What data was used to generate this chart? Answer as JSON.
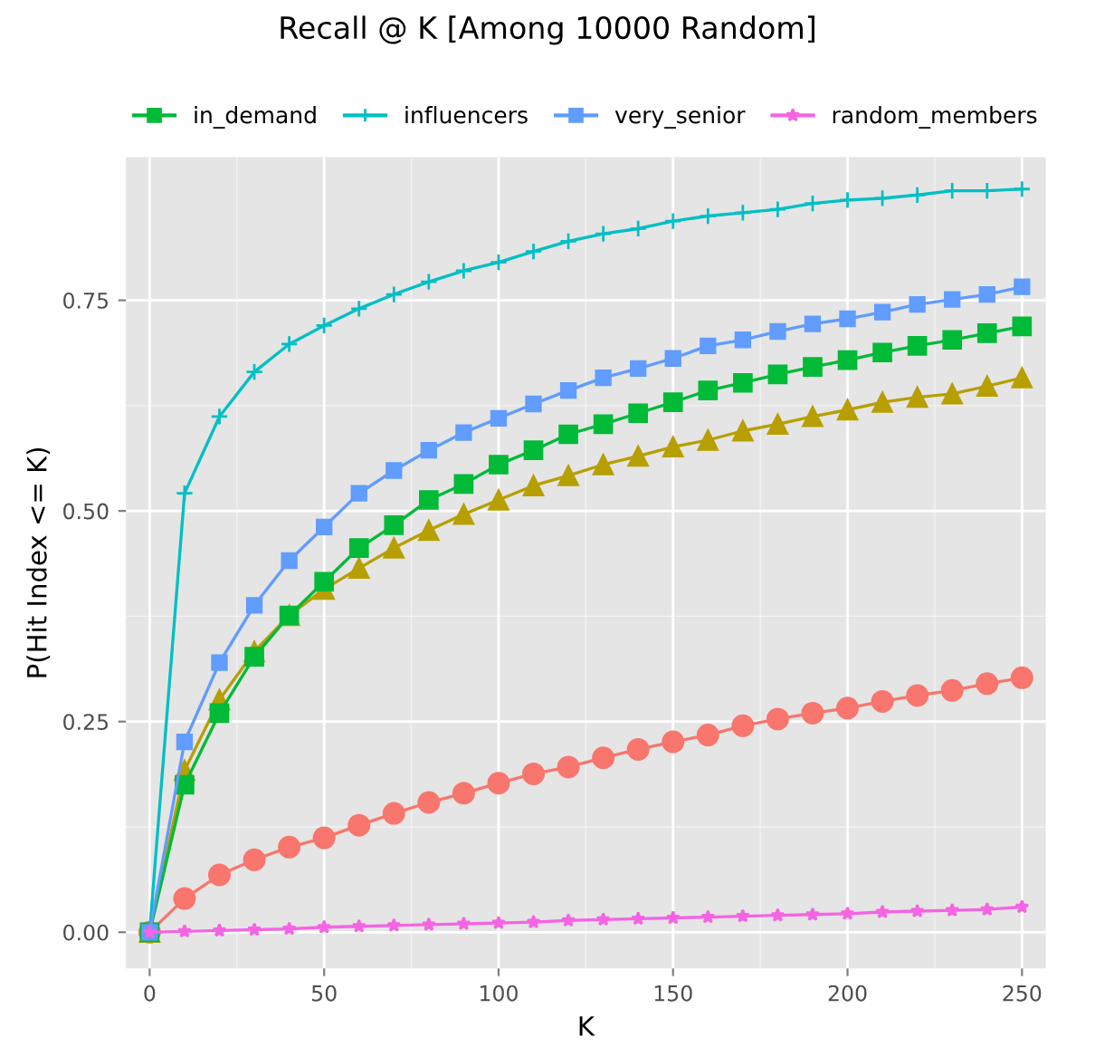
{
  "chart_data": {
    "type": "line",
    "title": "Recall @ K [Among 10000 Random]",
    "xlabel": "K",
    "ylabel": "P(Hit Index <= K)",
    "x": [
      0,
      10,
      20,
      30,
      40,
      50,
      60,
      70,
      80,
      90,
      100,
      110,
      120,
      130,
      140,
      150,
      160,
      170,
      180,
      190,
      200,
      210,
      220,
      230,
      240,
      250
    ],
    "series": [
      {
        "color": "#f8766d",
        "marker": "circle",
        "values": [
          0,
          0.04,
          0.068,
          0.086,
          0.101,
          0.112,
          0.127,
          0.141,
          0.154,
          0.165,
          0.177,
          0.188,
          0.196,
          0.207,
          0.217,
          0.226,
          0.234,
          0.245,
          0.253,
          0.26,
          0.266,
          0.274,
          0.281,
          0.287,
          0.295,
          0.302
        ]
      },
      {
        "color": "#b79f00",
        "marker": "triangle",
        "values": [
          0,
          0.192,
          0.276,
          0.333,
          0.376,
          0.407,
          0.432,
          0.456,
          0.477,
          0.496,
          0.513,
          0.53,
          0.542,
          0.555,
          0.565,
          0.576,
          0.584,
          0.595,
          0.603,
          0.612,
          0.62,
          0.629,
          0.635,
          0.639,
          0.648,
          0.658
        ]
      },
      {
        "name": "in_demand",
        "color": "#00ba38",
        "marker": "square",
        "values": [
          0,
          0.175,
          0.26,
          0.327,
          0.376,
          0.416,
          0.456,
          0.483,
          0.513,
          0.532,
          0.555,
          0.572,
          0.591,
          0.603,
          0.616,
          0.629,
          0.643,
          0.652,
          0.662,
          0.671,
          0.679,
          0.688,
          0.696,
          0.703,
          0.711,
          0.719
        ]
      },
      {
        "name": "influencers",
        "color": "#00bfc4",
        "marker": "cross",
        "values": [
          0,
          0.521,
          0.612,
          0.665,
          0.698,
          0.72,
          0.74,
          0.757,
          0.772,
          0.785,
          0.795,
          0.808,
          0.82,
          0.829,
          0.835,
          0.844,
          0.85,
          0.854,
          0.858,
          0.865,
          0.869,
          0.871,
          0.875,
          0.88,
          0.88,
          0.882
        ]
      },
      {
        "name": "very_senior",
        "color": "#619cff",
        "marker": "square",
        "values": [
          0,
          0.226,
          0.32,
          0.388,
          0.441,
          0.481,
          0.521,
          0.548,
          0.572,
          0.593,
          0.61,
          0.627,
          0.643,
          0.658,
          0.669,
          0.681,
          0.696,
          0.703,
          0.713,
          0.722,
          0.728,
          0.736,
          0.745,
          0.751,
          0.757,
          0.766
        ]
      },
      {
        "name": "random_members",
        "color": "#f564e3",
        "marker": "star",
        "values": [
          0,
          0.001,
          0.002,
          0.003,
          0.004,
          0.006,
          0.007,
          0.008,
          0.009,
          0.01,
          0.011,
          0.012,
          0.014,
          0.015,
          0.016,
          0.017,
          0.018,
          0.019,
          0.02,
          0.021,
          0.022,
          0.024,
          0.025,
          0.026,
          0.027,
          0.03
        ]
      }
    ],
    "xlim": [
      -6.8,
      256.8
    ],
    "xticks": [
      0,
      50,
      100,
      150,
      200,
      250
    ],
    "ylim": [
      -0.043,
      0.92
    ],
    "yticks": [
      {
        "value": 0,
        "label": "0.00"
      },
      {
        "value": 0.25,
        "label": "0.25"
      },
      {
        "value": 0.5,
        "label": "0.50"
      },
      {
        "value": 0.75,
        "label": "0.75"
      }
    ],
    "grid": true,
    "legend": "top",
    "line_style": "solid"
  }
}
